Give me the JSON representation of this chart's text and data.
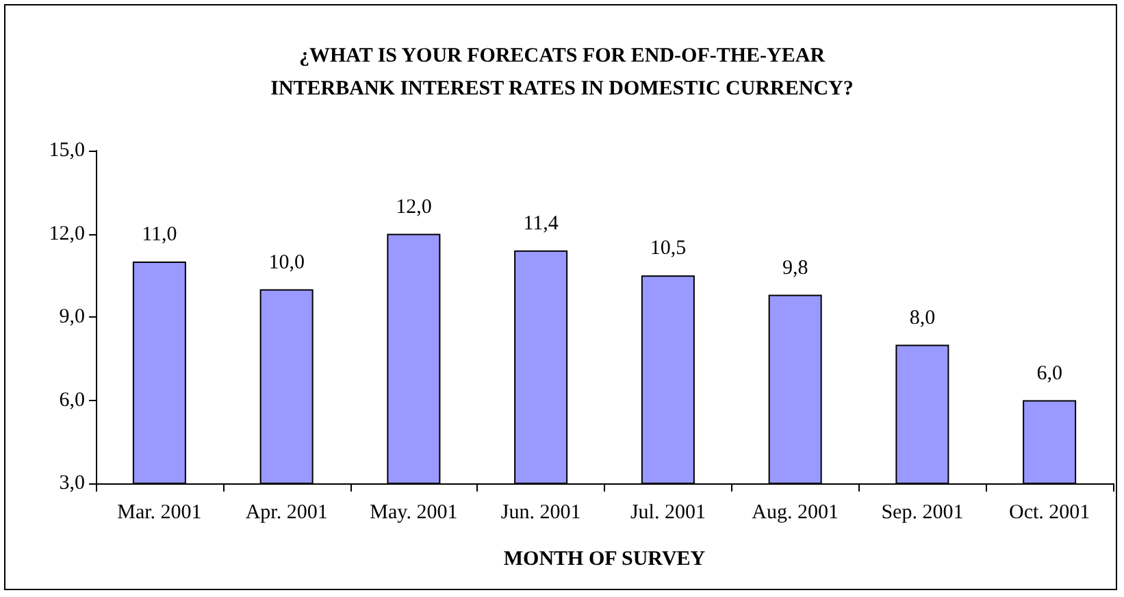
{
  "chart_data": {
    "type": "bar",
    "title": "¿WHAT IS YOUR FORECATS FOR END-OF-THE-YEAR\nINTERBANK INTEREST RATES IN DOMESTIC CURRENCY?",
    "xlabel": "MONTH OF SURVEY",
    "categories": [
      "Mar. 2001",
      "Apr. 2001",
      "May. 2001",
      "Jun. 2001",
      "Jul. 2001",
      "Aug. 2001",
      "Sep. 2001",
      "Oct. 2001"
    ],
    "values": [
      11.0,
      10.0,
      12.0,
      11.4,
      10.5,
      9.8,
      8.0,
      6.0
    ],
    "value_labels": [
      "11,0",
      "10,0",
      "12,0",
      "11,4",
      "10,5",
      "9,8",
      "8,0",
      "6,0"
    ],
    "color": "#9999ff",
    "ylim": [
      3,
      15
    ],
    "yticks": [
      {
        "value": 3,
        "label": "3,0"
      },
      {
        "value": 6,
        "label": "6,0"
      },
      {
        "value": 9,
        "label": "9,0"
      },
      {
        "value": 12,
        "label": "12,0"
      },
      {
        "value": 15,
        "label": "15,0"
      }
    ],
    "grid": false
  }
}
